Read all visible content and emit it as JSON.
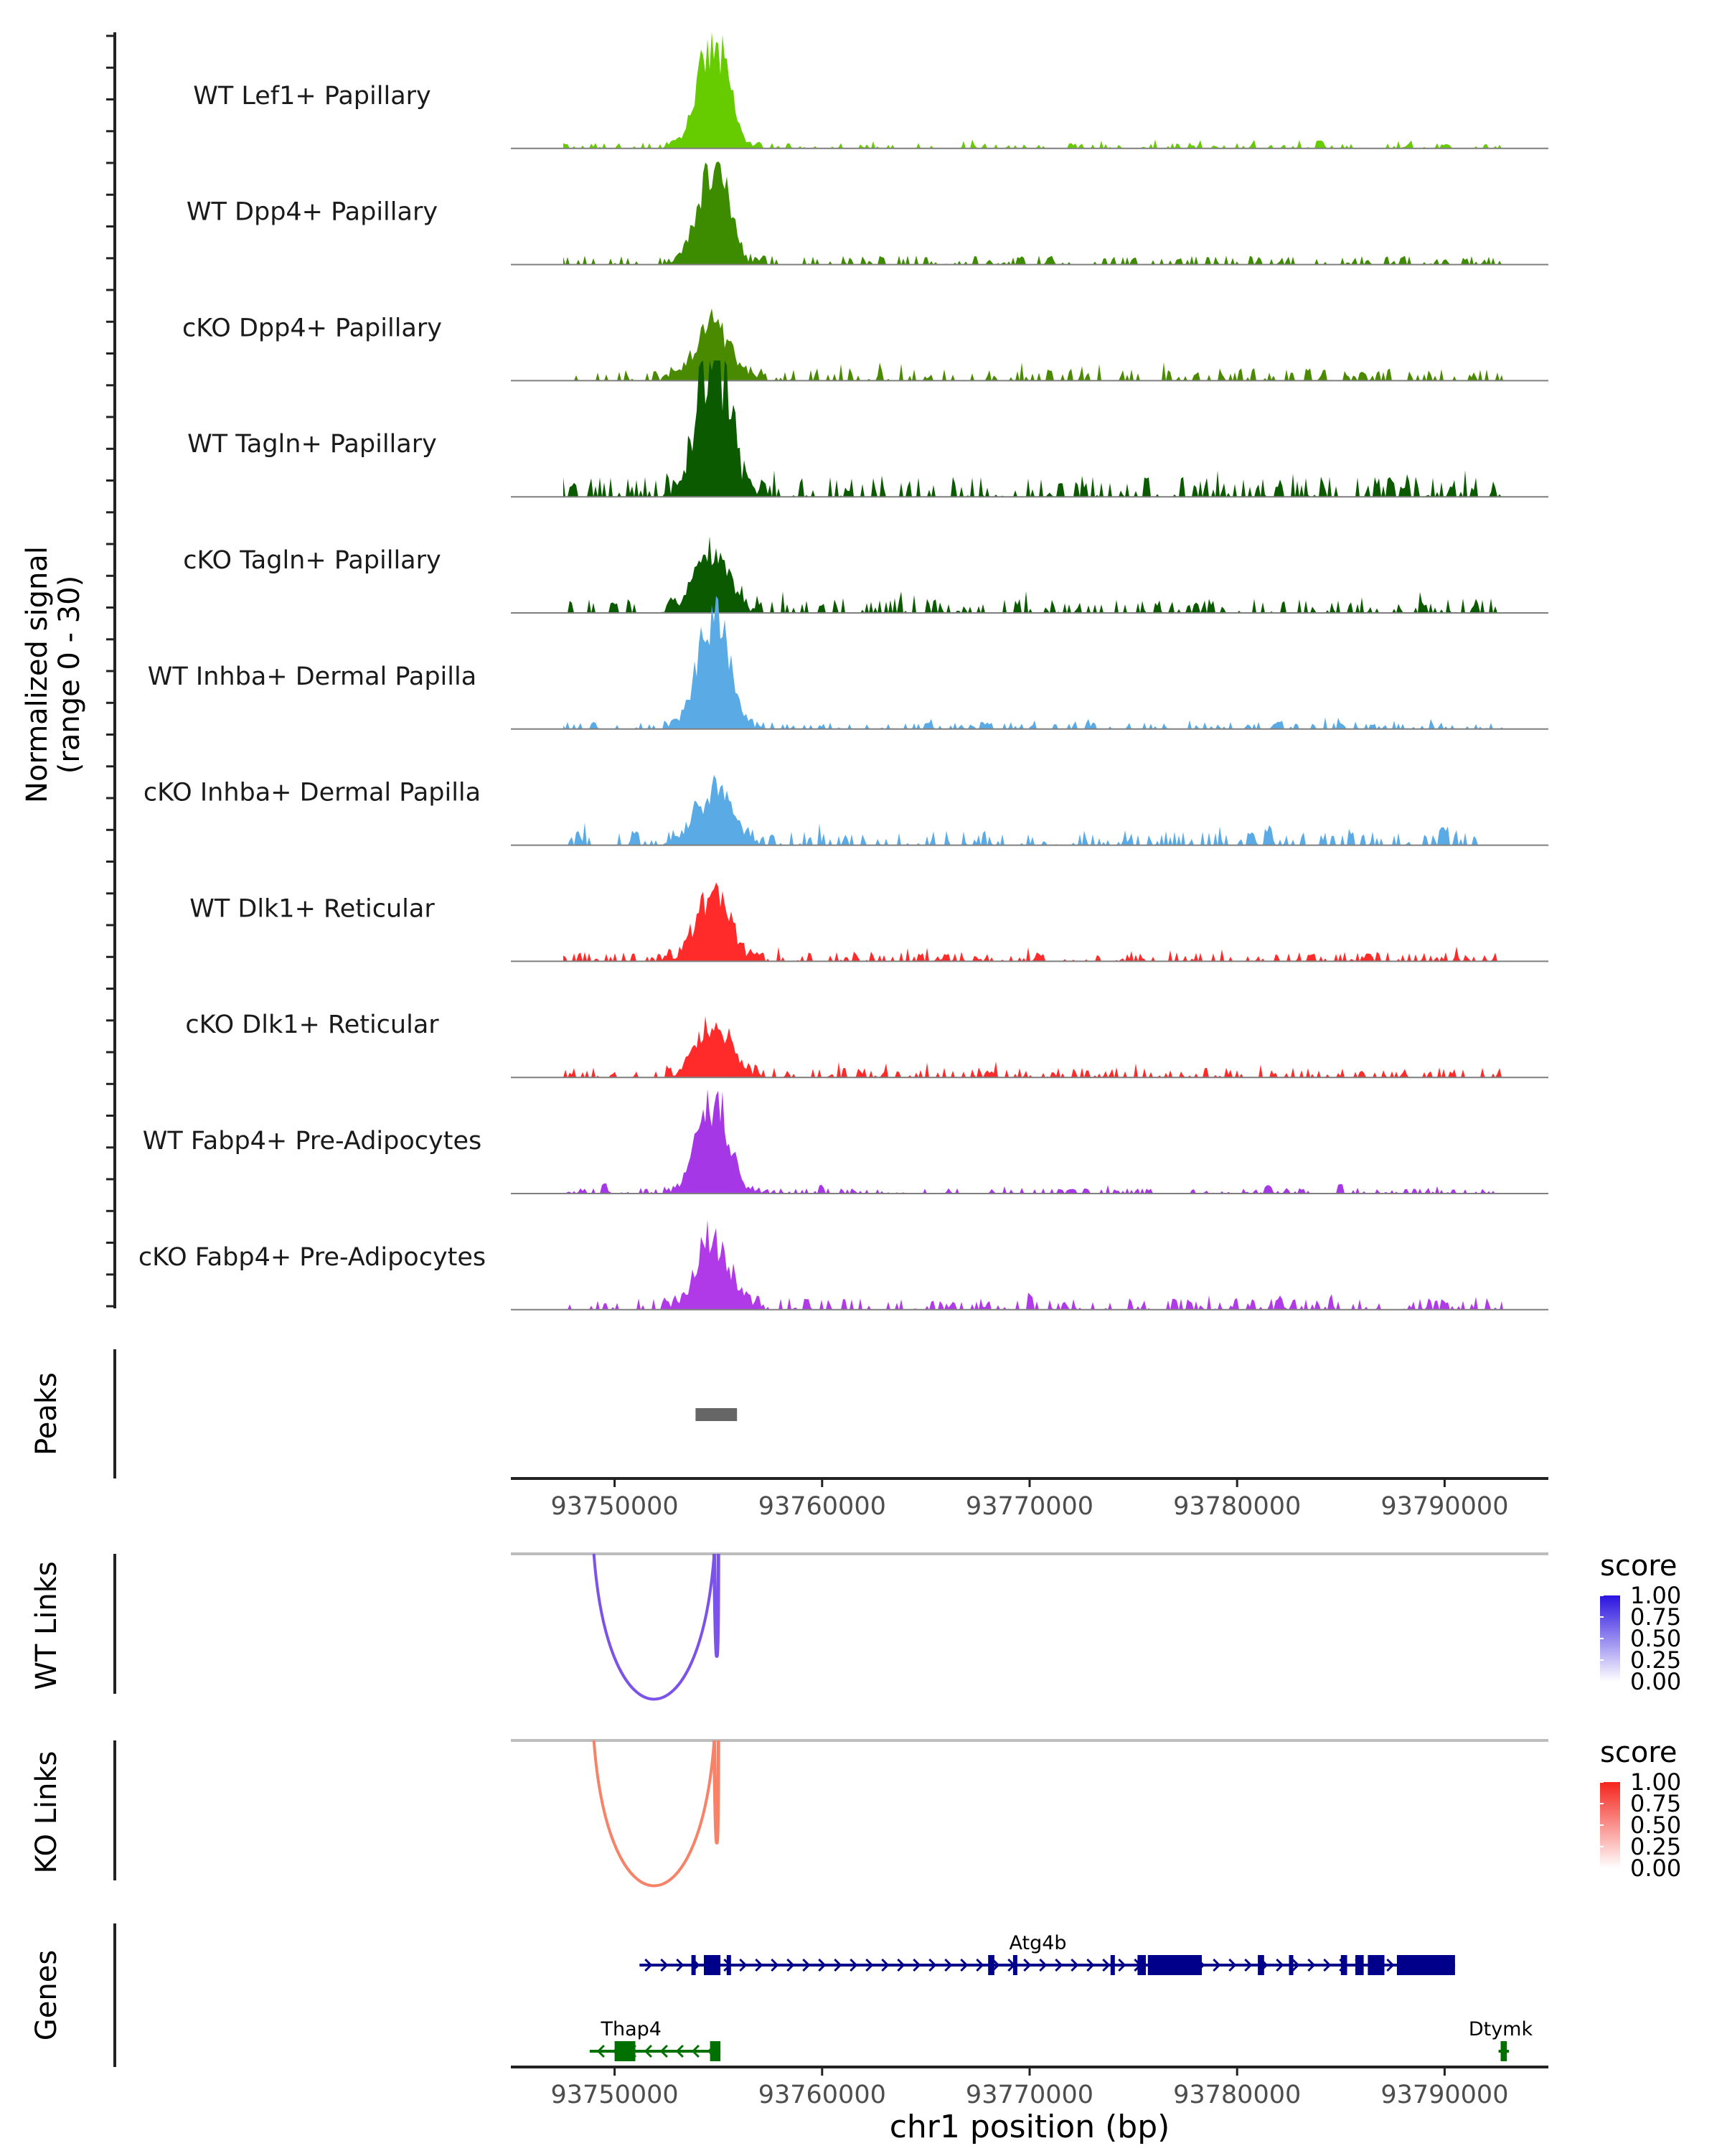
{
  "chart_data": {
    "type": "area",
    "title": "",
    "xlabel": "chr1 position (bp)",
    "xlim": [
      93745000,
      93795000
    ],
    "x_ticks": [
      93750000,
      93760000,
      93770000,
      93780000,
      93790000
    ],
    "x_tick_labels": [
      "93750000",
      "93760000",
      "93770000",
      "93780000",
      "93790000"
    ],
    "coverage": {
      "ylabel_line1": "Normalized signal",
      "ylabel_line2": "(range 0 - 30)",
      "ylim": [
        0,
        30
      ],
      "peak_center": 93754800,
      "tracks": [
        {
          "name": "WT Lef1+ Papillary",
          "color": "#66cc00",
          "peak_height": 27,
          "background": 1.0,
          "spikes": [
            [
              93772000,
              1.5
            ],
            [
              93784000,
              2.5
            ],
            [
              93790000,
              1.2
            ]
          ]
        },
        {
          "name": "WT Dpp4+ Papillary",
          "color": "#3d8c00",
          "peak_height": 24,
          "background": 1.6,
          "spikes": [
            [
              93771000,
              3
            ],
            [
              93775000,
              2
            ],
            [
              93788000,
              2.5
            ],
            [
              93791000,
              2
            ]
          ]
        },
        {
          "name": "cKO Dpp4+ Papillary",
          "color": "#4a8a00",
          "peak_height": 15,
          "background": 2.2,
          "spikes": [
            [
              93771000,
              3.5
            ],
            [
              93778000,
              2.5
            ],
            [
              93786000,
              2.5
            ]
          ]
        },
        {
          "name": "WT Tagln+ Papillary",
          "color": "#0b5a00",
          "peak_height": 38,
          "background": 3.5,
          "spikes": [
            [
              93748000,
              4
            ],
            [
              93771500,
              4
            ],
            [
              93782000,
              3.5
            ],
            [
              93788000,
              3
            ]
          ]
        },
        {
          "name": "cKO Tagln+ Papillary",
          "color": "#0b5a00",
          "peak_height": 15,
          "background": 2.6,
          "spikes": [
            [
              93750000,
              3
            ],
            [
              93760000,
              3
            ],
            [
              93778000,
              3
            ],
            [
              93789000,
              3
            ]
          ]
        },
        {
          "name": "WT Inhba+ Dermal Papilla",
          "color": "#5aaae6",
          "peak_height": 29,
          "background": 1.3,
          "spikes": [
            [
              93749000,
              2
            ],
            [
              93768000,
              2
            ],
            [
              93782000,
              2.5
            ],
            [
              93785000,
              2
            ]
          ]
        },
        {
          "name": "cKO Inhba+ Dermal Papilla",
          "color": "#5aaae6",
          "peak_height": 14,
          "background": 2.6,
          "spikes": [
            [
              93751000,
              5
            ],
            [
              93781500,
              6
            ],
            [
              93785500,
              5
            ],
            [
              93790000,
              5
            ]
          ]
        },
        {
          "name": "WT Dlk1+ Reticular",
          "color": "#ff2a2a",
          "peak_height": 18,
          "background": 1.7,
          "spikes": [
            [
              93766000,
              2.5
            ],
            [
              93770500,
              2.5
            ],
            [
              93783500,
              2.5
            ]
          ]
        },
        {
          "name": "cKO Dlk1+ Reticular",
          "color": "#ff2a2a",
          "peak_height": 14,
          "background": 1.8,
          "spikes": [
            [
              93754000,
              3
            ],
            [
              93768000,
              2
            ],
            [
              93786000,
              2
            ]
          ]
        },
        {
          "name": "WT Fabp4+ Pre-Adipocytes",
          "color": "#a637e6",
          "peak_height": 25,
          "background": 1.0,
          "spikes": [
            [
              93749500,
              3
            ],
            [
              93760000,
              2.5
            ],
            [
              93781500,
              2.5
            ],
            [
              93785000,
              3
            ]
          ]
        },
        {
          "name": "cKO Fabp4+ Pre-Adipocytes",
          "color": "#b03ae8",
          "peak_height": 19,
          "background": 2.0,
          "spikes": [
            [
              93770000,
              5
            ],
            [
              93777000,
              4
            ],
            [
              93782000,
              4
            ],
            [
              93790000,
              3
            ]
          ]
        }
      ]
    },
    "peaks": {
      "label": "Peaks",
      "color": "#666666",
      "regions": [
        [
          93753900,
          93755900
        ]
      ]
    },
    "links": [
      {
        "label": "WT Links",
        "legend_title": "score",
        "color": "#7b52ea",
        "scale_high": "#2a12e0",
        "scale_low": "#ffffff",
        "arcs": [
          [
            93749000,
            93754800,
            0.6
          ],
          [
            93754800,
            93755000,
            1.0
          ]
        ]
      },
      {
        "label": "KO Links",
        "legend_title": "score",
        "color": "#f78268",
        "scale_high": "#f5241c",
        "scale_low": "#ffffff",
        "arcs": [
          [
            93749000,
            93754800,
            0.55
          ],
          [
            93754800,
            93755000,
            1.0
          ]
        ]
      }
    ],
    "legend_ticks": [
      "1.00",
      "0.75",
      "0.50",
      "0.25",
      "0.00"
    ],
    "genes": {
      "label": "Genes",
      "items": [
        {
          "name": "Atg4b",
          "strand": "+",
          "color": "#00008b",
          "start": 93751200,
          "end": 93790500,
          "exons": [
            [
              93753700,
              93753800
            ],
            [
              93754300,
              93755100
            ],
            [
              93755400,
              93755500
            ],
            [
              93768000,
              93768300
            ],
            [
              93769200,
              93769300
            ],
            [
              93773900,
              93774100
            ],
            [
              93775200,
              93775600
            ],
            [
              93775700,
              93778300
            ],
            [
              93781000,
              93781300
            ],
            [
              93782500,
              93782700
            ],
            [
              93785000,
              93785300
            ],
            [
              93785700,
              93786100
            ],
            [
              93786300,
              93787100
            ],
            [
              93787700,
              93790500
            ]
          ]
        },
        {
          "name": "Thap4",
          "strand": "-",
          "color": "#007000",
          "start": 93748800,
          "end": 93755100,
          "exons": [
            [
              93750000,
              93751000
            ],
            [
              93754600,
              93755100
            ]
          ]
        },
        {
          "name": "Dtymk",
          "strand": "+",
          "color": "#007000",
          "start": 93792600,
          "end": 93793100,
          "exons": [
            [
              93792700,
              93793000
            ]
          ]
        }
      ]
    }
  }
}
